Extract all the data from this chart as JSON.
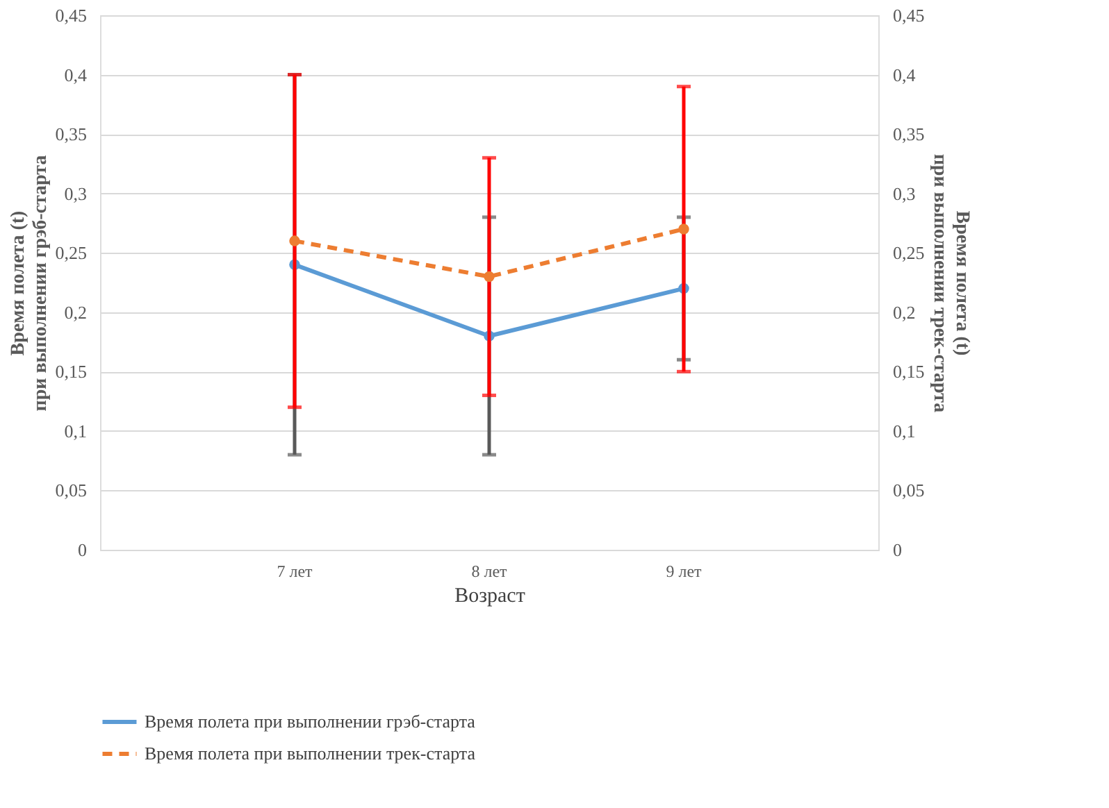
{
  "chart_data": {
    "type": "line",
    "xlabel": "Возраст",
    "ylabel": "Время полета (t)\nпри выполнении грэб-старта",
    "y2label": "Время полета (t)\nпри выполнении трек-старта",
    "categories": [
      "7 лет",
      "8 лет",
      "9 лет"
    ],
    "series": [
      {
        "name": "Время полета при выполнении грэб-старта",
        "color": "#5b9bd5",
        "values": [
          0.24,
          0.18,
          0.22
        ],
        "errors": [
          0.16,
          0.1,
          0.06
        ],
        "line_style": "solid",
        "marker": "circle"
      },
      {
        "name": "Время полета при выполнении трек-старта",
        "color": "#ed7d31",
        "values": [
          0.26,
          0.23,
          0.27
        ],
        "errors": [
          0.14,
          0.1,
          0.12
        ],
        "line_style": "dashed",
        "marker": "circle",
        "axis": "y2"
      }
    ],
    "ylim": [
      0,
      0.45
    ],
    "yticks": [
      0,
      {
        "value": 0.05,
        "label": "0,05"
      },
      {
        "value": 0.1,
        "label": "0,1"
      },
      {
        "value": 0.15,
        "label": "0,15"
      },
      {
        "value": 0.2,
        "label": "0,2"
      },
      {
        "value": 0.25,
        "label": "0,25"
      },
      {
        "value": 0.3,
        "label": "0,3"
      },
      {
        "value": 0.35,
        "label": "0,35"
      },
      {
        "value": 0.4,
        "label": "0,4"
      },
      {
        "value": 0.45,
        "label": "0,45"
      }
    ],
    "y2lim": [
      0,
      0.45
    ],
    "y2ticks": [
      0,
      {
        "value": 0.05,
        "label": "0,05"
      },
      {
        "value": 0.1,
        "label": "0,1"
      },
      {
        "value": 0.15,
        "label": "0,15"
      },
      {
        "value": 0.2,
        "label": "0,2"
      },
      {
        "value": 0.25,
        "label": "0,25"
      },
      {
        "value": 0.3,
        "label": "0,3"
      },
      {
        "value": 0.35,
        "label": "0,35"
      },
      {
        "value": 0.4,
        "label": "0,4"
      },
      {
        "value": 0.45,
        "label": "0,45"
      }
    ],
    "grid": "y",
    "legend": "bottom"
  }
}
